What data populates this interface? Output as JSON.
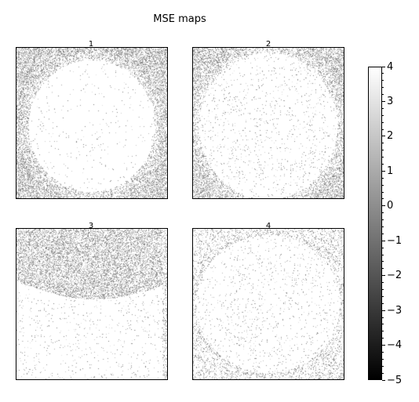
{
  "chart_data": {
    "type": "heatmap",
    "title": "MSE maps",
    "panels": [
      {
        "label": "1",
        "bright_region": "centered ellipse, mostly white"
      },
      {
        "label": "2",
        "bright_region": "large ellipse, lightly speckled"
      },
      {
        "label": "3",
        "bright_region": "lower region with curved streaks"
      },
      {
        "label": "4",
        "bright_region": "nearly full panel, faint ellipse outline"
      }
    ],
    "colormap": "gray",
    "colorbar": {
      "range": [
        -5,
        4
      ],
      "ticks": [
        4,
        3,
        2,
        1,
        0,
        -1,
        -2,
        -3,
        -4,
        -5
      ],
      "tick_labels": [
        "4",
        "3",
        "2",
        "1",
        "0",
        "−1",
        "−2",
        "−3",
        "−4",
        "−5"
      ],
      "minor_ticks": true
    },
    "grid": false,
    "axis_ticks_on_panels": false
  }
}
